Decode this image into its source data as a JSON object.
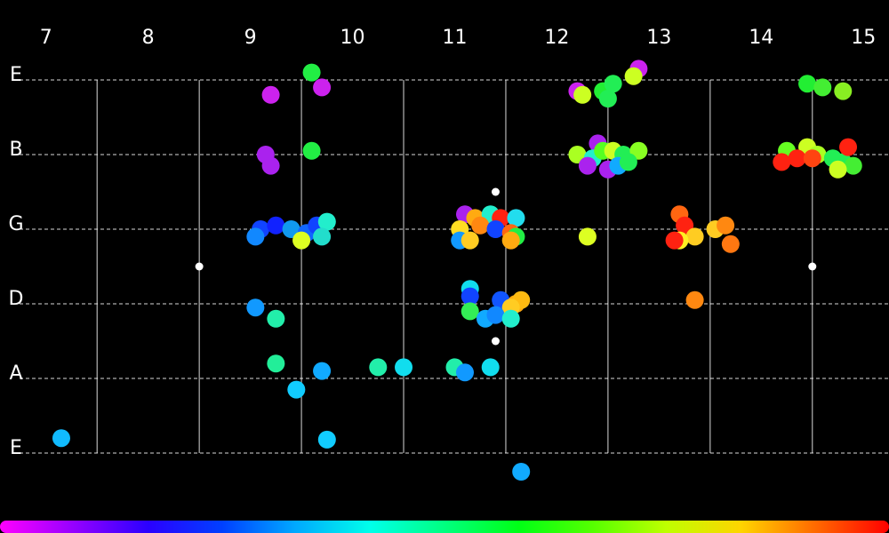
{
  "chart_data": {
    "type": "scatter",
    "title": "",
    "xlabel": "",
    "ylabel": "",
    "x_ticks": [
      7,
      8,
      9,
      10,
      11,
      12,
      13,
      14,
      15
    ],
    "xlim": [
      6.55,
      15.25
    ],
    "strings": [
      "E",
      "A",
      "D",
      "G",
      "B",
      "E"
    ],
    "grid": true,
    "background": "#000000",
    "gridline_color": "#ffffff",
    "fret_markers": [
      {
        "x": 8.5,
        "y": 2.5
      },
      {
        "x": 11.4,
        "y": 3.5
      },
      {
        "x": 11.4,
        "y": 1.5
      },
      {
        "x": 14.5,
        "y": 2.5
      }
    ],
    "colorbar": {
      "position": "bottom",
      "hue_start": 300,
      "hue_end": 0
    },
    "points": [
      {
        "x": 9.6,
        "y": 5.1,
        "color": "#22ee44"
      },
      {
        "x": 9.7,
        "y": 4.9,
        "color": "#cc22ee"
      },
      {
        "x": 9.2,
        "y": 4.8,
        "color": "#cc22ee"
      },
      {
        "x": 9.15,
        "y": 4.0,
        "color": "#aa22ee"
      },
      {
        "x": 9.2,
        "y": 3.85,
        "color": "#aa22ee"
      },
      {
        "x": 9.6,
        "y": 4.05,
        "color": "#22ee44"
      },
      {
        "x": 9.1,
        "y": 3.0,
        "color": "#1144ff"
      },
      {
        "x": 9.25,
        "y": 3.05,
        "color": "#1122ff"
      },
      {
        "x": 9.4,
        "y": 3.0,
        "color": "#1199ee"
      },
      {
        "x": 9.55,
        "y": 2.95,
        "color": "#1166ff"
      },
      {
        "x": 9.65,
        "y": 3.05,
        "color": "#1144ff"
      },
      {
        "x": 9.75,
        "y": 3.1,
        "color": "#22eecc"
      },
      {
        "x": 9.7,
        "y": 2.9,
        "color": "#22ddcc"
      },
      {
        "x": 9.05,
        "y": 2.9,
        "color": "#1188ff"
      },
      {
        "x": 9.5,
        "y": 2.85,
        "color": "#ddff22"
      },
      {
        "x": 9.05,
        "y": 1.95,
        "color": "#1199ff"
      },
      {
        "x": 9.25,
        "y": 1.8,
        "color": "#22eeaa"
      },
      {
        "x": 9.25,
        "y": 1.2,
        "color": "#22ee99"
      },
      {
        "x": 9.45,
        "y": 0.85,
        "color": "#11ccff"
      },
      {
        "x": 9.7,
        "y": 1.1,
        "color": "#11aaff"
      },
      {
        "x": 7.15,
        "y": 0.2,
        "color": "#11bbff"
      },
      {
        "x": 9.75,
        "y": 0.18,
        "color": "#11ccff"
      },
      {
        "x": 10.25,
        "y": 1.15,
        "color": "#22eeaa"
      },
      {
        "x": 10.5,
        "y": 1.15,
        "color": "#11ddee"
      },
      {
        "x": 11.0,
        "y": 1.15,
        "color": "#22eeaa"
      },
      {
        "x": 11.1,
        "y": 1.08,
        "color": "#1199ff"
      },
      {
        "x": 11.35,
        "y": 1.15,
        "color": "#11ddee"
      },
      {
        "x": 11.1,
        "y": 3.2,
        "color": "#aa22ee"
      },
      {
        "x": 11.2,
        "y": 3.15,
        "color": "#ffaa11"
      },
      {
        "x": 11.35,
        "y": 3.2,
        "color": "#22eecc"
      },
      {
        "x": 11.45,
        "y": 3.15,
        "color": "#ff2211"
      },
      {
        "x": 11.6,
        "y": 3.15,
        "color": "#22ddee"
      },
      {
        "x": 11.05,
        "y": 3.0,
        "color": "#ffdd22"
      },
      {
        "x": 11.25,
        "y": 3.05,
        "color": "#ff8811"
      },
      {
        "x": 11.4,
        "y": 3.0,
        "color": "#1144ff"
      },
      {
        "x": 11.55,
        "y": 2.95,
        "color": "#ff6611"
      },
      {
        "x": 11.6,
        "y": 2.9,
        "color": "#22ee44"
      },
      {
        "x": 11.05,
        "y": 2.85,
        "color": "#1199ff"
      },
      {
        "x": 11.15,
        "y": 2.85,
        "color": "#ffcc22"
      },
      {
        "x": 11.55,
        "y": 2.85,
        "color": "#ffaa11"
      },
      {
        "x": 11.15,
        "y": 2.2,
        "color": "#11ddee"
      },
      {
        "x": 11.15,
        "y": 2.1,
        "color": "#1144ff"
      },
      {
        "x": 11.45,
        "y": 2.05,
        "color": "#1155ff"
      },
      {
        "x": 11.6,
        "y": 2.0,
        "color": "#ffaa11"
      },
      {
        "x": 11.65,
        "y": 2.05,
        "color": "#ffbb11"
      },
      {
        "x": 11.55,
        "y": 1.95,
        "color": "#ffcc22"
      },
      {
        "x": 11.15,
        "y": 1.9,
        "color": "#33ee55"
      },
      {
        "x": 11.3,
        "y": 1.8,
        "color": "#11aaff"
      },
      {
        "x": 11.4,
        "y": 1.85,
        "color": "#1188ff"
      },
      {
        "x": 11.55,
        "y": 1.8,
        "color": "#22eecc"
      },
      {
        "x": 11.65,
        "y": -0.25,
        "color": "#11aaff"
      },
      {
        "x": 12.2,
        "y": 4.85,
        "color": "#cc22ee"
      },
      {
        "x": 12.25,
        "y": 4.8,
        "color": "#ccff22"
      },
      {
        "x": 12.45,
        "y": 4.85,
        "color": "#22ee33"
      },
      {
        "x": 12.55,
        "y": 4.95,
        "color": "#22ee55"
      },
      {
        "x": 12.5,
        "y": 4.75,
        "color": "#22ee55"
      },
      {
        "x": 12.8,
        "y": 5.15,
        "color": "#cc22ee"
      },
      {
        "x": 12.75,
        "y": 5.05,
        "color": "#ccff22"
      },
      {
        "x": 12.4,
        "y": 4.15,
        "color": "#aa22ee"
      },
      {
        "x": 12.2,
        "y": 4.0,
        "color": "#aaff22"
      },
      {
        "x": 12.35,
        "y": 3.95,
        "color": "#22eecc"
      },
      {
        "x": 12.45,
        "y": 4.05,
        "color": "#55ff22"
      },
      {
        "x": 12.55,
        "y": 4.05,
        "color": "#ccff22"
      },
      {
        "x": 12.65,
        "y": 4.0,
        "color": "#22ee55"
      },
      {
        "x": 12.8,
        "y": 4.05,
        "color": "#88ff22"
      },
      {
        "x": 12.3,
        "y": 3.85,
        "color": "#aa22ee"
      },
      {
        "x": 12.5,
        "y": 3.8,
        "color": "#aa22ee"
      },
      {
        "x": 12.6,
        "y": 3.85,
        "color": "#11aaff"
      },
      {
        "x": 12.7,
        "y": 3.9,
        "color": "#22ee55"
      },
      {
        "x": 12.3,
        "y": 2.9,
        "color": "#ddff22"
      },
      {
        "x": 13.2,
        "y": 3.2,
        "color": "#ff6611"
      },
      {
        "x": 13.25,
        "y": 3.05,
        "color": "#ff2211"
      },
      {
        "x": 13.35,
        "y": 2.9,
        "color": "#ffcc22"
      },
      {
        "x": 13.55,
        "y": 3.0,
        "color": "#ffcc22"
      },
      {
        "x": 13.65,
        "y": 3.05,
        "color": "#ff8811"
      },
      {
        "x": 13.2,
        "y": 2.85,
        "color": "#ffee22"
      },
      {
        "x": 13.15,
        "y": 2.85,
        "color": "#ff2211"
      },
      {
        "x": 13.7,
        "y": 2.8,
        "color": "#ff7711"
      },
      {
        "x": 13.35,
        "y": 2.05,
        "color": "#ff8811"
      },
      {
        "x": 14.45,
        "y": 4.95,
        "color": "#22ee33"
      },
      {
        "x": 14.6,
        "y": 4.9,
        "color": "#44ee33"
      },
      {
        "x": 14.8,
        "y": 4.85,
        "color": "#88ee22"
      },
      {
        "x": 14.25,
        "y": 4.05,
        "color": "#66ff22"
      },
      {
        "x": 14.45,
        "y": 4.1,
        "color": "#ccff22"
      },
      {
        "x": 14.55,
        "y": 4.0,
        "color": "#aaff22"
      },
      {
        "x": 14.7,
        "y": 3.95,
        "color": "#22ee55"
      },
      {
        "x": 14.8,
        "y": 3.9,
        "color": "#22ee55"
      },
      {
        "x": 14.9,
        "y": 3.85,
        "color": "#44ee33"
      },
      {
        "x": 14.85,
        "y": 4.1,
        "color": "#ff2211"
      },
      {
        "x": 14.2,
        "y": 3.9,
        "color": "#ff2211"
      },
      {
        "x": 14.35,
        "y": 3.95,
        "color": "#ff2211"
      },
      {
        "x": 14.5,
        "y": 3.95,
        "color": "#ff4411"
      },
      {
        "x": 14.75,
        "y": 3.8,
        "color": "#ccff22"
      }
    ]
  }
}
